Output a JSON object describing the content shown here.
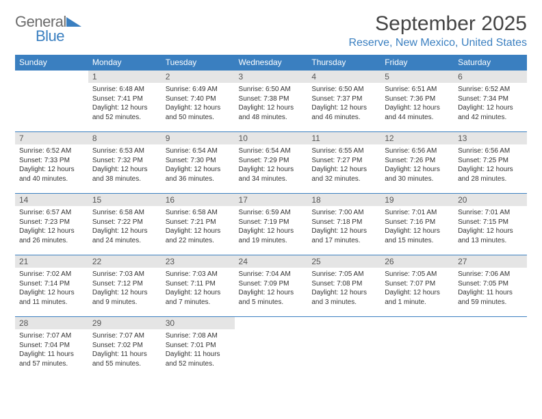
{
  "logo": {
    "word1": "General",
    "word2": "Blue"
  },
  "title": "September 2025",
  "location": "Reserve, New Mexico, United States",
  "weekdays": [
    "Sunday",
    "Monday",
    "Tuesday",
    "Wednesday",
    "Thursday",
    "Friday",
    "Saturday"
  ],
  "colors": {
    "header_bg": "#3a7fc0",
    "header_text": "#ffffff",
    "daynum_bg": "#e5e5e5",
    "cell_border": "#3a7fc0",
    "accent": "#3a7fc0",
    "text": "#333333",
    "title_text": "#444444",
    "logo_gray": "#6b6b6b",
    "background": "#ffffff"
  },
  "typography": {
    "title_fontsize": 30,
    "location_fontsize": 16,
    "weekday_fontsize": 12,
    "daynum_fontsize": 12,
    "body_fontsize": 10,
    "font_family": "Arial"
  },
  "layout": {
    "columns": 7,
    "rows": 5,
    "start_weekday_index": 1
  },
  "grid": [
    [
      {
        "day": "",
        "sunrise": "",
        "sunset": "",
        "daylight": ""
      },
      {
        "day": "1",
        "sunrise": "Sunrise: 6:48 AM",
        "sunset": "Sunset: 7:41 PM",
        "daylight": "Daylight: 12 hours and 52 minutes."
      },
      {
        "day": "2",
        "sunrise": "Sunrise: 6:49 AM",
        "sunset": "Sunset: 7:40 PM",
        "daylight": "Daylight: 12 hours and 50 minutes."
      },
      {
        "day": "3",
        "sunrise": "Sunrise: 6:50 AM",
        "sunset": "Sunset: 7:38 PM",
        "daylight": "Daylight: 12 hours and 48 minutes."
      },
      {
        "day": "4",
        "sunrise": "Sunrise: 6:50 AM",
        "sunset": "Sunset: 7:37 PM",
        "daylight": "Daylight: 12 hours and 46 minutes."
      },
      {
        "day": "5",
        "sunrise": "Sunrise: 6:51 AM",
        "sunset": "Sunset: 7:36 PM",
        "daylight": "Daylight: 12 hours and 44 minutes."
      },
      {
        "day": "6",
        "sunrise": "Sunrise: 6:52 AM",
        "sunset": "Sunset: 7:34 PM",
        "daylight": "Daylight: 12 hours and 42 minutes."
      }
    ],
    [
      {
        "day": "7",
        "sunrise": "Sunrise: 6:52 AM",
        "sunset": "Sunset: 7:33 PM",
        "daylight": "Daylight: 12 hours and 40 minutes."
      },
      {
        "day": "8",
        "sunrise": "Sunrise: 6:53 AM",
        "sunset": "Sunset: 7:32 PM",
        "daylight": "Daylight: 12 hours and 38 minutes."
      },
      {
        "day": "9",
        "sunrise": "Sunrise: 6:54 AM",
        "sunset": "Sunset: 7:30 PM",
        "daylight": "Daylight: 12 hours and 36 minutes."
      },
      {
        "day": "10",
        "sunrise": "Sunrise: 6:54 AM",
        "sunset": "Sunset: 7:29 PM",
        "daylight": "Daylight: 12 hours and 34 minutes."
      },
      {
        "day": "11",
        "sunrise": "Sunrise: 6:55 AM",
        "sunset": "Sunset: 7:27 PM",
        "daylight": "Daylight: 12 hours and 32 minutes."
      },
      {
        "day": "12",
        "sunrise": "Sunrise: 6:56 AM",
        "sunset": "Sunset: 7:26 PM",
        "daylight": "Daylight: 12 hours and 30 minutes."
      },
      {
        "day": "13",
        "sunrise": "Sunrise: 6:56 AM",
        "sunset": "Sunset: 7:25 PM",
        "daylight": "Daylight: 12 hours and 28 minutes."
      }
    ],
    [
      {
        "day": "14",
        "sunrise": "Sunrise: 6:57 AM",
        "sunset": "Sunset: 7:23 PM",
        "daylight": "Daylight: 12 hours and 26 minutes."
      },
      {
        "day": "15",
        "sunrise": "Sunrise: 6:58 AM",
        "sunset": "Sunset: 7:22 PM",
        "daylight": "Daylight: 12 hours and 24 minutes."
      },
      {
        "day": "16",
        "sunrise": "Sunrise: 6:58 AM",
        "sunset": "Sunset: 7:21 PM",
        "daylight": "Daylight: 12 hours and 22 minutes."
      },
      {
        "day": "17",
        "sunrise": "Sunrise: 6:59 AM",
        "sunset": "Sunset: 7:19 PM",
        "daylight": "Daylight: 12 hours and 19 minutes."
      },
      {
        "day": "18",
        "sunrise": "Sunrise: 7:00 AM",
        "sunset": "Sunset: 7:18 PM",
        "daylight": "Daylight: 12 hours and 17 minutes."
      },
      {
        "day": "19",
        "sunrise": "Sunrise: 7:01 AM",
        "sunset": "Sunset: 7:16 PM",
        "daylight": "Daylight: 12 hours and 15 minutes."
      },
      {
        "day": "20",
        "sunrise": "Sunrise: 7:01 AM",
        "sunset": "Sunset: 7:15 PM",
        "daylight": "Daylight: 12 hours and 13 minutes."
      }
    ],
    [
      {
        "day": "21",
        "sunrise": "Sunrise: 7:02 AM",
        "sunset": "Sunset: 7:14 PM",
        "daylight": "Daylight: 12 hours and 11 minutes."
      },
      {
        "day": "22",
        "sunrise": "Sunrise: 7:03 AM",
        "sunset": "Sunset: 7:12 PM",
        "daylight": "Daylight: 12 hours and 9 minutes."
      },
      {
        "day": "23",
        "sunrise": "Sunrise: 7:03 AM",
        "sunset": "Sunset: 7:11 PM",
        "daylight": "Daylight: 12 hours and 7 minutes."
      },
      {
        "day": "24",
        "sunrise": "Sunrise: 7:04 AM",
        "sunset": "Sunset: 7:09 PM",
        "daylight": "Daylight: 12 hours and 5 minutes."
      },
      {
        "day": "25",
        "sunrise": "Sunrise: 7:05 AM",
        "sunset": "Sunset: 7:08 PM",
        "daylight": "Daylight: 12 hours and 3 minutes."
      },
      {
        "day": "26",
        "sunrise": "Sunrise: 7:05 AM",
        "sunset": "Sunset: 7:07 PM",
        "daylight": "Daylight: 12 hours and 1 minute."
      },
      {
        "day": "27",
        "sunrise": "Sunrise: 7:06 AM",
        "sunset": "Sunset: 7:05 PM",
        "daylight": "Daylight: 11 hours and 59 minutes."
      }
    ],
    [
      {
        "day": "28",
        "sunrise": "Sunrise: 7:07 AM",
        "sunset": "Sunset: 7:04 PM",
        "daylight": "Daylight: 11 hours and 57 minutes."
      },
      {
        "day": "29",
        "sunrise": "Sunrise: 7:07 AM",
        "sunset": "Sunset: 7:02 PM",
        "daylight": "Daylight: 11 hours and 55 minutes."
      },
      {
        "day": "30",
        "sunrise": "Sunrise: 7:08 AM",
        "sunset": "Sunset: 7:01 PM",
        "daylight": "Daylight: 11 hours and 52 minutes."
      },
      {
        "day": "",
        "sunrise": "",
        "sunset": "",
        "daylight": ""
      },
      {
        "day": "",
        "sunrise": "",
        "sunset": "",
        "daylight": ""
      },
      {
        "day": "",
        "sunrise": "",
        "sunset": "",
        "daylight": ""
      },
      {
        "day": "",
        "sunrise": "",
        "sunset": "",
        "daylight": ""
      }
    ]
  ]
}
